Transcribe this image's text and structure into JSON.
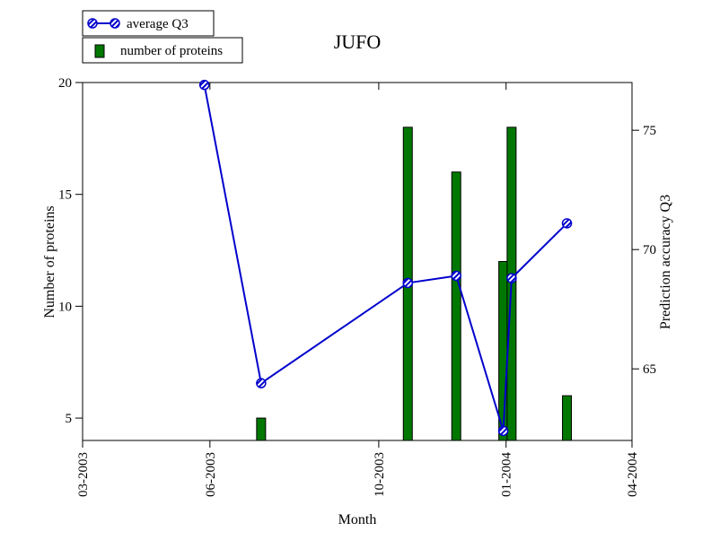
{
  "chart_data": {
    "type": "bar+line",
    "title": "JUFO",
    "xlabel": "Month",
    "ylabel_left": "Number of proteins",
    "ylabel_right": "Prediction accuracy Q3",
    "x_ticks": [
      "03-2003",
      "06-2003",
      "10-2003",
      "01-2004",
      "04-2004"
    ],
    "x_tick_dates": [
      "2003-03-01",
      "2003-06-01",
      "2003-10-01",
      "2004-01-01",
      "2004-04-01"
    ],
    "x_range": [
      "2003-03-01",
      "2004-04-01"
    ],
    "ylim_left": [
      4,
      20
    ],
    "yticks_left": [
      5,
      10,
      15,
      20
    ],
    "ylim_right": [
      62,
      77
    ],
    "yticks_right": [
      65,
      70,
      75
    ],
    "legend_position": "top-left, outside plot",
    "series": [
      {
        "name": "average Q3",
        "kind": "line",
        "axis": "right",
        "color": "#0000cc",
        "x": [
          "2003-05-28",
          "2003-07-08",
          "2003-10-22",
          "2003-11-26",
          "2003-12-30",
          "2004-01-05",
          "2004-02-14"
        ],
        "y": [
          76.9,
          64.4,
          68.6,
          68.9,
          62.4,
          68.8,
          71.1
        ]
      },
      {
        "name": "number of proteins",
        "kind": "bar",
        "axis": "left",
        "color": "#007700",
        "x": [
          "2003-07-08",
          "2003-10-22",
          "2003-11-26",
          "2003-12-30",
          "2004-01-05",
          "2004-02-14"
        ],
        "y": [
          5,
          18,
          16,
          12,
          18,
          6
        ]
      }
    ]
  }
}
